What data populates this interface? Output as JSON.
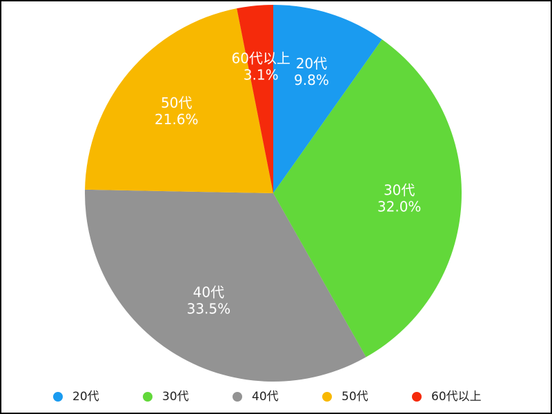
{
  "chart_data": {
    "type": "pie",
    "categories": [
      "20代",
      "30代",
      "40代",
      "50代",
      "60代以上"
    ],
    "values": [
      9.8,
      32.0,
      33.5,
      21.6,
      3.1
    ],
    "value_labels": [
      "9.8%",
      "32.0%",
      "33.5%",
      "21.6%",
      "3.1%"
    ],
    "colors": [
      "#1a9bf0",
      "#62d83a",
      "#939393",
      "#f8b800",
      "#f52a0b"
    ],
    "legend": "bottom"
  }
}
